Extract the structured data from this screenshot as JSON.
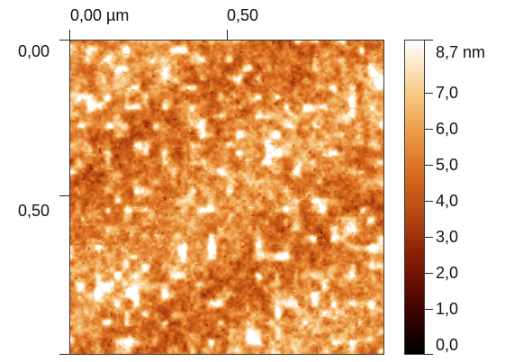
{
  "image": {
    "x_axis": {
      "ticks": [
        "0,00 µm",
        "0,50"
      ]
    },
    "y_axis": {
      "ticks": [
        "0,00",
        "0,50"
      ]
    },
    "colorbar": {
      "labels": [
        "8,7 nm",
        "7,0",
        "6,0",
        "5,0",
        "4,0",
        "3,0",
        "2,0",
        "1,0",
        "0,0"
      ],
      "colors": [
        "#000000",
        "#5a0b00",
        "#b64a12",
        "#eb9945",
        "#ffffff"
      ]
    }
  }
}
